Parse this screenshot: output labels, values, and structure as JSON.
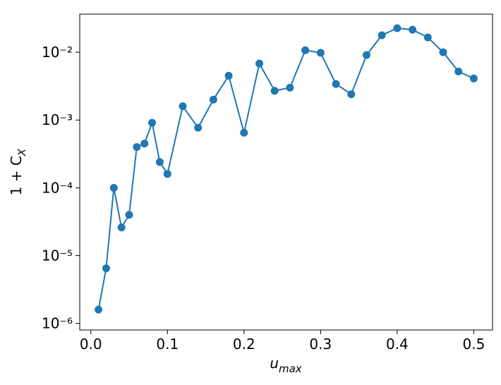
{
  "chart_data": {
    "type": "line",
    "xlabel": {
      "base": "u",
      "sub": "max"
    },
    "ylabel": {
      "base": "1 + C",
      "sub": "X"
    },
    "series": [
      {
        "color": "#1f77b4",
        "x": [
          0.01,
          0.02,
          0.03,
          0.04,
          0.05,
          0.06,
          0.07,
          0.08,
          0.09,
          0.1,
          0.12,
          0.14,
          0.16,
          0.18,
          0.2,
          0.22,
          0.24,
          0.26,
          0.28,
          0.3,
          0.32,
          0.34,
          0.36,
          0.38,
          0.4,
          0.42,
          0.44,
          0.46,
          0.48,
          0.5
        ],
        "values": [
          1.6e-06,
          6.5e-06,
          0.0001,
          2.6e-05,
          4e-05,
          0.0004,
          0.00045,
          0.00091,
          0.00024,
          0.00016,
          0.0016,
          0.00077,
          0.002,
          0.0045,
          0.00065,
          0.0068,
          0.0027,
          0.003,
          0.0107,
          0.0098,
          0.0034,
          0.0024,
          0.0091,
          0.0178,
          0.0226,
          0.0215,
          0.0165,
          0.01,
          0.0052,
          0.0041
        ]
      }
    ],
    "xlim": [
      -0.0145,
      0.5245
    ],
    "xticks": [
      {
        "value": 0,
        "label": "0.0"
      },
      0.1,
      0.2,
      0.3,
      0.4,
      0.5
    ],
    "ylim": [
      8e-07,
      0.0365
    ],
    "yscale": "log",
    "yticks": [
      {
        "value": 1e-06,
        "label": "10⁻⁶"
      },
      {
        "value": 1e-05,
        "label": "10⁻⁵"
      },
      {
        "value": 0.0001,
        "label": "10⁻⁴"
      },
      {
        "value": 0.001,
        "label": "10⁻³"
      },
      {
        "value": 0.01,
        "label": "10⁻²"
      }
    ]
  }
}
